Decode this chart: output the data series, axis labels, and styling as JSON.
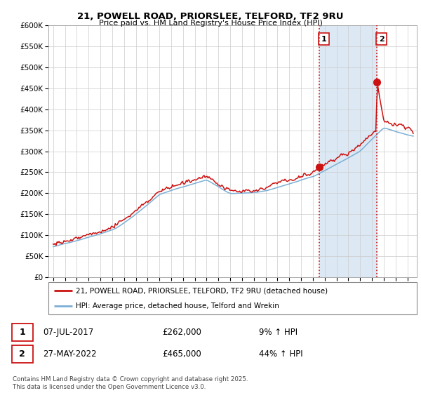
{
  "title_line1": "21, POWELL ROAD, PRIORSLEE, TELFORD, TF2 9RU",
  "title_line2": "Price paid vs. HM Land Registry's House Price Index (HPI)",
  "ylim": [
    0,
    600000
  ],
  "ytick_vals": [
    0,
    50000,
    100000,
    150000,
    200000,
    250000,
    300000,
    350000,
    400000,
    450000,
    500000,
    550000,
    600000
  ],
  "hpi_color": "#7bafd4",
  "price_color": "#cc1111",
  "marker1_date": 2017.52,
  "marker1_price": 262000,
  "marker2_date": 2022.41,
  "marker2_price": 465000,
  "vline_color": "#cc1111",
  "shade_color": "#dce9f5",
  "legend_label1": "21, POWELL ROAD, PRIORSLEE, TELFORD, TF2 9RU (detached house)",
  "legend_label2": "HPI: Average price, detached house, Telford and Wrekin",
  "table_row1": [
    "1",
    "07-JUL-2017",
    "£262,000",
    "9% ↑ HPI"
  ],
  "table_row2": [
    "2",
    "27-MAY-2022",
    "£465,000",
    "44% ↑ HPI"
  ],
  "footnote": "Contains HM Land Registry data © Crown copyright and database right 2025.\nThis data is licensed under the Open Government Licence v3.0.",
  "grid_color": "#cccccc",
  "xlim_left": 1994.6,
  "xlim_right": 2025.8
}
